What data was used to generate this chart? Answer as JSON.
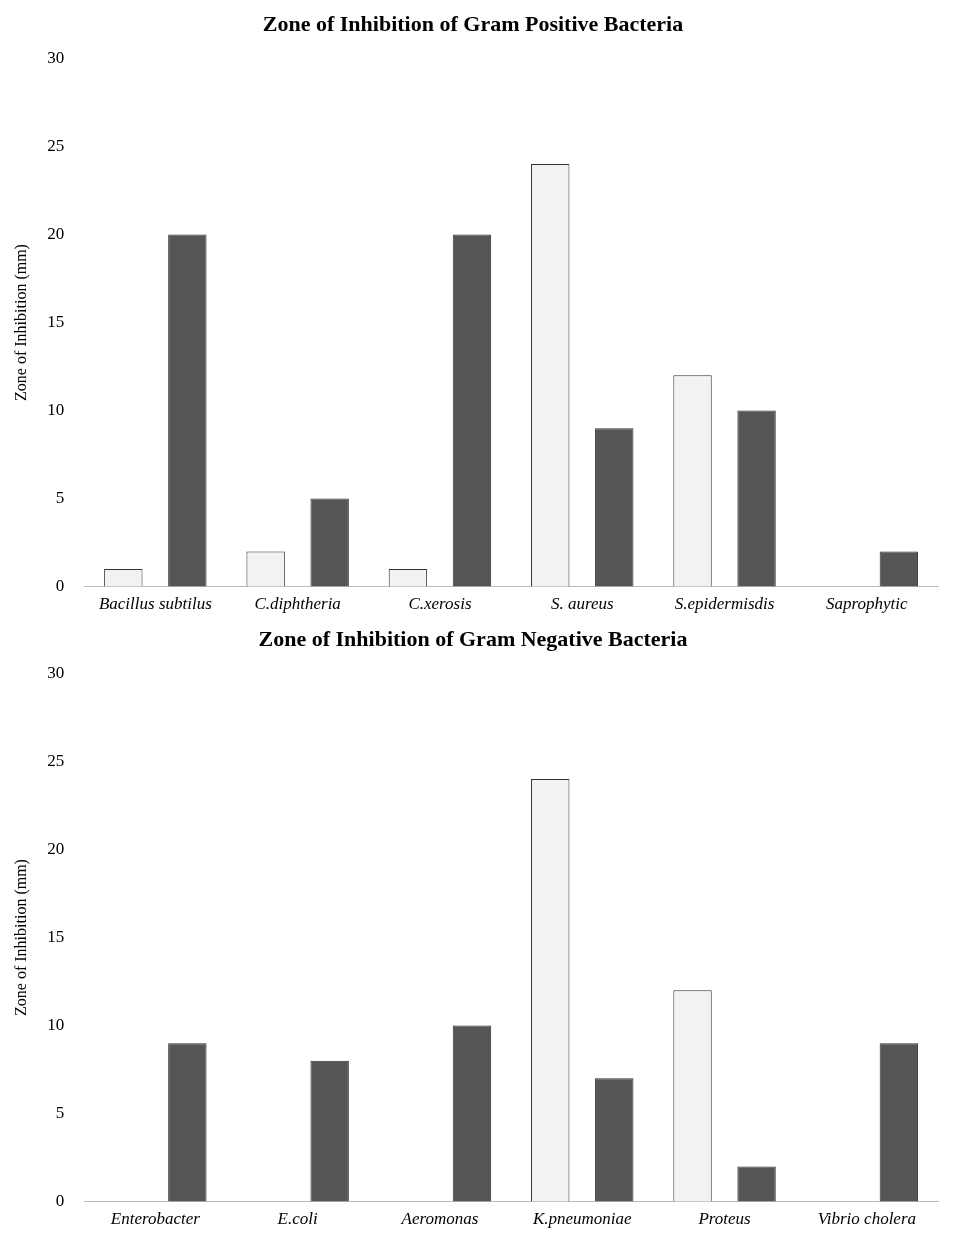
{
  "chart_data": [
    {
      "type": "bar",
      "title": "Zone of Inhibition of Gram Positive Bacteria",
      "ylabel": "Zone of Inhibition (mm)",
      "categories": [
        "Bacillus subtilus",
        "C.diphtheria",
        "C.xerosis",
        "S. aureus",
        "S.epidermisdis",
        "Saprophytic"
      ],
      "series": [
        {
          "color": "#f2f2f2",
          "values": [
            1,
            2,
            1,
            24,
            12,
            0
          ]
        },
        {
          "color": "#555555",
          "values": [
            20,
            5,
            20,
            9,
            10,
            2
          ]
        }
      ],
      "ylim": [
        0,
        30
      ],
      "yticks": [
        0,
        5,
        10,
        15,
        20,
        25,
        30
      ],
      "grid": false,
      "legend": false
    },
    {
      "type": "bar",
      "title": "Zone of Inhibition of Gram Negative Bacteria",
      "ylabel": "Zone of Inhibition (mm)",
      "categories": [
        "Enterobacter",
        "E.coli",
        "Aeromonas",
        "K.pneumoniae",
        "Proteus",
        "Vibrio cholera"
      ],
      "series": [
        {
          "color": "#f2f2f2",
          "values": [
            0,
            0,
            0,
            24,
            12,
            0
          ]
        },
        {
          "color": "#555555",
          "values": [
            9,
            8,
            10,
            7,
            2,
            9
          ]
        }
      ],
      "ylim": [
        0,
        30
      ],
      "yticks": [
        0,
        5,
        10,
        15,
        20,
        25,
        30
      ],
      "grid": false,
      "legend": false
    }
  ]
}
